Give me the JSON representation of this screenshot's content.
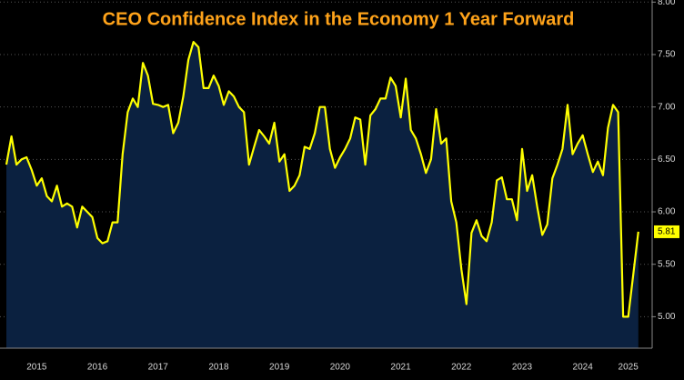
{
  "chart_data": {
    "type": "area",
    "title": "CEO Confidence Index in the Economy 1 Year Forward",
    "categories": [
      null,
      null,
      null,
      null,
      null,
      null,
      "2015",
      null,
      null,
      null,
      null,
      null,
      null,
      null,
      null,
      null,
      null,
      null,
      "2016",
      null,
      null,
      null,
      null,
      null,
      null,
      null,
      null,
      null,
      null,
      null,
      "2017",
      null,
      null,
      null,
      null,
      null,
      null,
      null,
      null,
      null,
      null,
      null,
      "2018",
      null,
      null,
      null,
      null,
      null,
      null,
      null,
      null,
      null,
      null,
      null,
      "2019",
      null,
      null,
      null,
      null,
      null,
      null,
      null,
      null,
      null,
      null,
      null,
      "2020",
      null,
      null,
      null,
      null,
      null,
      null,
      null,
      null,
      null,
      null,
      null,
      "2021",
      null,
      null,
      null,
      null,
      null,
      null,
      null,
      null,
      null,
      null,
      null,
      "2022",
      null,
      null,
      null,
      null,
      null,
      null,
      null,
      null,
      null,
      null,
      null,
      "2023",
      null,
      null,
      null,
      null,
      null,
      null,
      null,
      null,
      null,
      null,
      null,
      "2024",
      null,
      null,
      null,
      null,
      null,
      null,
      null,
      null,
      "2025",
      null,
      null
    ],
    "values": [
      6.45,
      6.72,
      6.45,
      6.5,
      6.52,
      6.4,
      6.25,
      6.32,
      6.15,
      6.1,
      6.25,
      6.05,
      6.08,
      6.05,
      5.85,
      6.05,
      6.0,
      5.95,
      5.75,
      5.7,
      5.72,
      5.9,
      5.9,
      6.55,
      6.95,
      7.08,
      7.0,
      7.42,
      7.3,
      7.03,
      7.02,
      7.0,
      7.02,
      6.75,
      6.85,
      7.1,
      7.45,
      7.62,
      7.57,
      7.18,
      7.18,
      7.3,
      7.2,
      7.02,
      7.15,
      7.1,
      7.0,
      6.95,
      6.45,
      6.62,
      6.78,
      6.72,
      6.65,
      6.85,
      6.48,
      6.55,
      6.2,
      6.25,
      6.35,
      6.62,
      6.6,
      6.75,
      7.0,
      7.0,
      6.6,
      6.42,
      6.52,
      6.6,
      6.7,
      6.9,
      6.88,
      6.45,
      6.92,
      6.98,
      7.08,
      7.08,
      7.28,
      7.2,
      6.9,
      7.27,
      6.78,
      6.7,
      6.55,
      6.37,
      6.5,
      6.98,
      6.65,
      6.7,
      6.1,
      5.9,
      5.45,
      5.12,
      5.8,
      5.92,
      5.77,
      5.72,
      5.9,
      6.3,
      6.33,
      6.12,
      6.12,
      5.92,
      6.6,
      6.2,
      6.35,
      6.05,
      5.78,
      5.88,
      6.32,
      6.45,
      6.6,
      7.02,
      6.55,
      6.65,
      6.73,
      6.55,
      6.38,
      6.48,
      6.35,
      6.8,
      7.02,
      6.95,
      5.0,
      5.0,
      5.4,
      5.81
    ],
    "color": "#ffff00",
    "area_color": "#0b2140",
    "title_color": "#ffa31a",
    "ylim": [
      4.7,
      8.02
    ],
    "yticks": [
      {
        "value": 5,
        "label": "5.00"
      },
      {
        "value": 5.5,
        "label": "5.50"
      },
      {
        "value": 6,
        "label": "6.00"
      },
      {
        "value": 6.5,
        "label": "6.50"
      },
      {
        "value": 7,
        "label": "7.00"
      },
      {
        "value": 7.5,
        "label": "7.50"
      },
      {
        "value": 8,
        "label": "8.00"
      }
    ],
    "grid": true
  }
}
